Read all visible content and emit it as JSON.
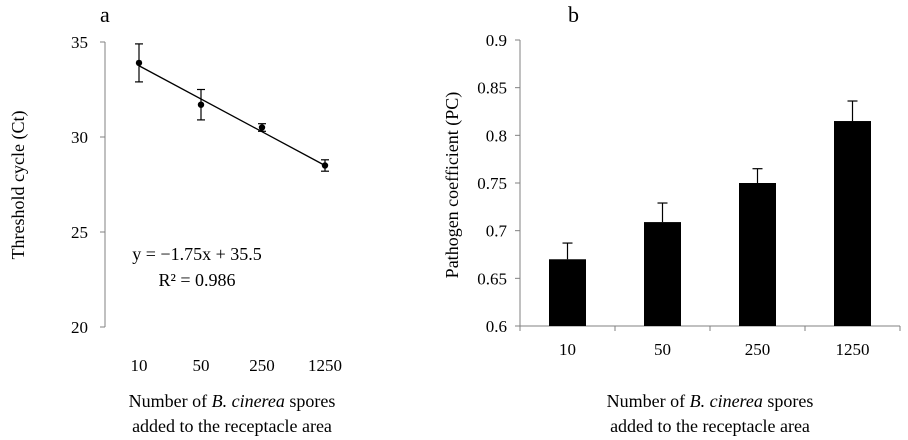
{
  "chart_data": [
    {
      "panel": "a",
      "type": "scatter",
      "categories": [
        "10",
        "50",
        "250",
        "1250"
      ],
      "values": [
        33.9,
        31.7,
        30.5,
        28.5
      ],
      "errors": [
        1.0,
        0.8,
        0.2,
        0.3
      ],
      "trendline": {
        "slope": -1.75,
        "intercept": 35.5
      },
      "equation": "y = −1.75x + 35.5",
      "r_squared": "R² = 0.986",
      "ylabel": "Threshold cycle (Ct)",
      "xlabel": {
        "line1_pre": "Number of ",
        "line1_italic": "B. cinerea",
        "line1_post": " spores",
        "line2": "added to the receptacle area"
      },
      "ylim": [
        20,
        35
      ],
      "yticks": [
        "20",
        "25",
        "30",
        "35"
      ],
      "grid": false
    },
    {
      "panel": "b",
      "type": "bar",
      "categories": [
        "10",
        "50",
        "250",
        "1250"
      ],
      "values": [
        0.67,
        0.709,
        0.75,
        0.815
      ],
      "errors": [
        0.017,
        0.02,
        0.015,
        0.021
      ],
      "ylabel": "Pathogen coefficient (PC)",
      "xlabel": {
        "line1_pre": "Number of ",
        "line1_italic": "B. cinerea",
        "line1_post": " spores",
        "line2": "added to the receptacle area"
      },
      "ylim": [
        0.6,
        0.9
      ],
      "yticks": [
        "0.6",
        "0.65",
        "0.7",
        "0.75",
        "0.8",
        "0.85",
        "0.9"
      ],
      "bar_color": "#000000",
      "grid": false
    }
  ]
}
